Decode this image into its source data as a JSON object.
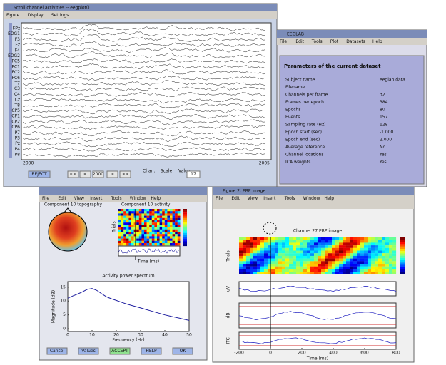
{
  "eeg_window": {
    "title": "Scroll channel activities -- eegplot()",
    "menu": [
      "Figure",
      "Display",
      "Settings"
    ],
    "channels": [
      "FPz",
      "EOG1",
      "F3",
      "Fz",
      "F4",
      "EOG2",
      "FC5",
      "FC1",
      "FC2",
      "FC6",
      "T7",
      "C3",
      "C4",
      "Cz",
      "T8",
      "CP5",
      "CP1",
      "CP2",
      "CP6",
      "P7",
      "P3",
      "Pz",
      "P4",
      "P8"
    ],
    "xtick_labels": [
      "2000",
      "2005"
    ],
    "buttons": [
      "REJECT",
      "<<",
      "<",
      "2000",
      ">",
      ">>"
    ],
    "chan_label": "Chan.",
    "scale_label": "Scale",
    "value_label": "Value",
    "scale_value": "17"
  },
  "eeglab_window": {
    "title": "EEGLAB",
    "menu": [
      "File",
      "Edit",
      "Tools",
      "Plot",
      "Datasets",
      "Help"
    ],
    "heading": "Parameters of the current dataset",
    "rows": [
      [
        "Subject name",
        "eeglab data"
      ],
      [
        "Filename",
        ""
      ],
      [
        "Channels per frame",
        "32"
      ],
      [
        "Frames per epoch",
        "384"
      ],
      [
        "Epochs",
        "80"
      ],
      [
        "Events",
        "157"
      ],
      [
        "Sampling rate (Hz)",
        "128"
      ],
      [
        "Epoch start (sec)",
        "-1.000"
      ],
      [
        "Epoch end (sec)",
        "2.000"
      ],
      [
        "Average reference",
        "No"
      ],
      [
        "Channel locations",
        "Yes"
      ],
      [
        "ICA weights",
        "Yes"
      ]
    ]
  },
  "prop_window": {
    "menu": [
      "File",
      "Edit",
      "View",
      "Insert",
      "Tools",
      "Window",
      "Help"
    ],
    "topo_title": "Component 10 topography",
    "activity_title": "Component 10 activity",
    "activity_ylabel": "Trials",
    "activity_xlabel": "Time (ms)",
    "chart_data": {
      "type": "line",
      "title": "Activity power spectrum",
      "x_label": "Frequency (Hz)",
      "y_label": "Magnitude (dB)",
      "x": [
        0,
        2,
        4,
        6,
        8,
        10,
        12,
        14,
        16,
        18,
        20,
        22,
        24,
        26,
        28,
        30,
        32,
        34,
        36,
        38,
        40,
        42,
        44,
        46,
        48,
        50
      ],
      "values": [
        11,
        11.8,
        12.5,
        13.3,
        14.2,
        14.5,
        13.8,
        12.6,
        11.5,
        10.8,
        10.2,
        9.6,
        9,
        8.5,
        8,
        7.5,
        7,
        6.5,
        6,
        5.5,
        5,
        4.6,
        4.2,
        3.8,
        3.4,
        3
      ],
      "color": "#2020a0",
      "xlim": [
        0,
        50
      ],
      "ylim": [
        -1,
        17
      ],
      "xticks": [
        0,
        10,
        20,
        30,
        40,
        50
      ],
      "yticks": [
        0,
        5,
        10,
        15
      ]
    },
    "buttons": [
      "Cancel",
      "Values",
      "ACCEPT",
      "HELP",
      "OK"
    ]
  },
  "erp_window": {
    "title": "Figure 2: ERP image",
    "menu": [
      "File",
      "Edit",
      "View",
      "Insert",
      "Tools",
      "Window",
      "Help"
    ],
    "plot_title": "Channel 27 ERP image",
    "ylabels": [
      "Trials",
      "uV",
      "dB",
      "ITC"
    ],
    "x_label": "Time (ms)",
    "xlim": [
      -200,
      800
    ],
    "xticks": [
      -200,
      0,
      200,
      400,
      600,
      800
    ]
  }
}
